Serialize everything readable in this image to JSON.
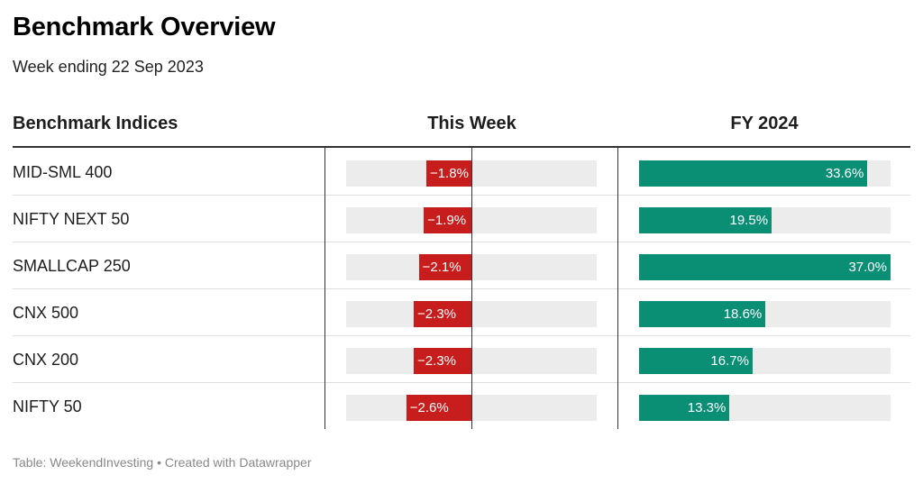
{
  "header": {
    "title": "Benchmark Overview",
    "subtitle": "Week ending 22 Sep 2023"
  },
  "columns": {
    "name": "Benchmark Indices",
    "week": "This Week",
    "fy": "FY 2024"
  },
  "chart_data": {
    "type": "table",
    "title": "Benchmark Overview",
    "subtitle": "Week ending 22 Sep 2023",
    "categories": [
      "MID-SML 400",
      "NIFTY NEXT 50",
      "SMALLCAP 250",
      "CNX 500",
      "CNX 200",
      "NIFTY 50"
    ],
    "series": [
      {
        "name": "This Week",
        "values": [
          -1.8,
          -1.9,
          -2.1,
          -2.3,
          -2.3,
          -2.6
        ],
        "labels": [
          "−1.8%",
          "−1.9%",
          "−2.1%",
          "−2.3%",
          "−2.3%",
          "−2.6%"
        ],
        "range": [
          -5,
          5
        ]
      },
      {
        "name": "FY 2024",
        "values": [
          33.6,
          19.5,
          37.0,
          18.6,
          16.7,
          13.3
        ],
        "labels": [
          "33.6%",
          "19.5%",
          "37.0%",
          "18.6%",
          "16.7%",
          "13.3%"
        ],
        "range": [
          0,
          37.0
        ]
      }
    ],
    "colors": {
      "negative": "#c71e1d",
      "positive": "#0a8f74",
      "track": "#ececec"
    }
  },
  "footer": "Table: WeekendInvesting • Created with Datawrapper"
}
